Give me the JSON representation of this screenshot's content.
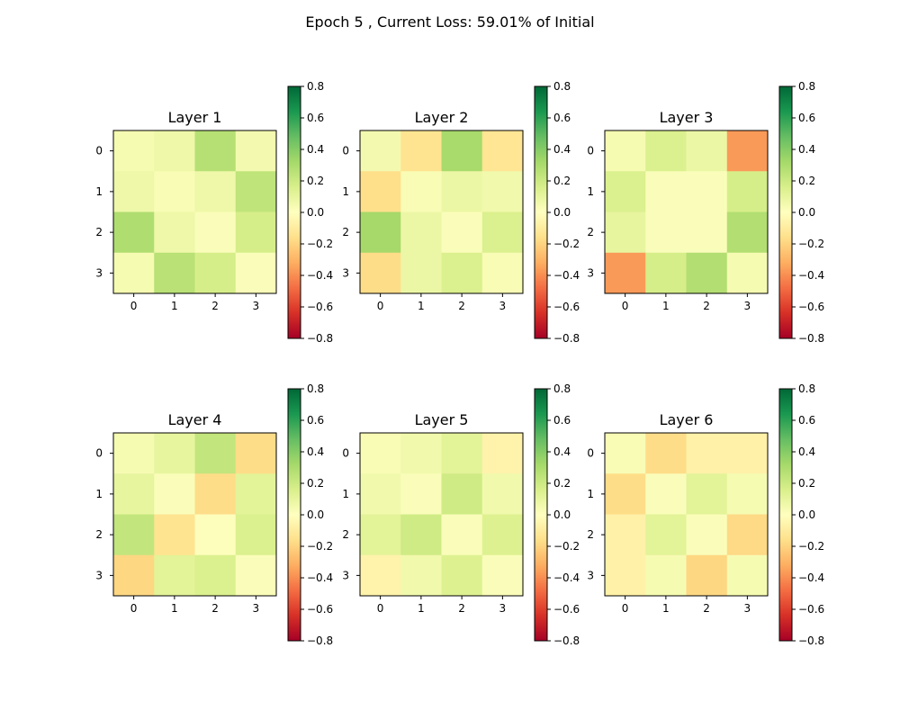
{
  "figure": {
    "title": "Epoch 5 , Current Loss: 59.01% of Initial"
  },
  "chart_data": [
    {
      "type": "heatmap",
      "title": "Layer 1",
      "x_ticks": [
        "0",
        "1",
        "2",
        "3"
      ],
      "y_ticks": [
        "0",
        "1",
        "2",
        "3"
      ],
      "values": [
        [
          0.04,
          0.07,
          0.27,
          0.05
        ],
        [
          0.07,
          0.03,
          0.07,
          0.24
        ],
        [
          0.29,
          0.07,
          0.02,
          0.17
        ],
        [
          0.04,
          0.26,
          0.17,
          0.02
        ]
      ],
      "colorbar": {
        "vmin": -0.8,
        "vmax": 0.8,
        "ticks": [
          "0.8",
          "0.6",
          "0.4",
          "0.2",
          "0.0",
          "−0.2",
          "−0.4",
          "−0.6",
          "−0.8"
        ]
      }
    },
    {
      "type": "heatmap",
      "title": "Layer 2",
      "x_ticks": [
        "0",
        "1",
        "2",
        "3"
      ],
      "y_ticks": [
        "0",
        "1",
        "2",
        "3"
      ],
      "values": [
        [
          0.05,
          -0.14,
          0.31,
          -0.13
        ],
        [
          -0.16,
          0.03,
          0.08,
          0.06
        ],
        [
          0.32,
          0.08,
          0.02,
          0.15
        ],
        [
          -0.17,
          0.08,
          0.15,
          0.03
        ]
      ],
      "colorbar": {
        "vmin": -0.8,
        "vmax": 0.8,
        "ticks": [
          "0.8",
          "0.6",
          "0.4",
          "0.2",
          "0.0",
          "−0.2",
          "−0.4",
          "−0.6",
          "−0.8"
        ]
      }
    },
    {
      "type": "heatmap",
      "title": "Layer 3",
      "x_ticks": [
        "0",
        "1",
        "2",
        "3"
      ],
      "y_ticks": [
        "0",
        "1",
        "2",
        "3"
      ],
      "values": [
        [
          0.04,
          0.15,
          0.08,
          -0.37
        ],
        [
          0.15,
          0.02,
          0.02,
          0.17
        ],
        [
          0.1,
          0.02,
          0.02,
          0.28
        ],
        [
          -0.37,
          0.17,
          0.28,
          0.04
        ]
      ],
      "colorbar": {
        "vmin": -0.8,
        "vmax": 0.8,
        "ticks": [
          "0.8",
          "0.6",
          "0.4",
          "0.2",
          "0.0",
          "−0.2",
          "−0.4",
          "−0.6",
          "−0.8"
        ]
      }
    },
    {
      "type": "heatmap",
      "title": "Layer 4",
      "x_ticks": [
        "0",
        "1",
        "2",
        "3"
      ],
      "y_ticks": [
        "0",
        "1",
        "2",
        "3"
      ],
      "values": [
        [
          0.04,
          0.1,
          0.23,
          -0.17
        ],
        [
          0.1,
          0.02,
          -0.17,
          0.12
        ],
        [
          0.23,
          -0.14,
          0.01,
          0.15
        ],
        [
          -0.19,
          0.12,
          0.15,
          0.02
        ]
      ],
      "colorbar": {
        "vmin": -0.8,
        "vmax": 0.8,
        "ticks": [
          "0.8",
          "0.6",
          "0.4",
          "0.2",
          "0.0",
          "−0.2",
          "−0.4",
          "−0.6",
          "−0.8"
        ]
      }
    },
    {
      "type": "heatmap",
      "title": "Layer 5",
      "x_ticks": [
        "0",
        "1",
        "2",
        "3"
      ],
      "y_ticks": [
        "0",
        "1",
        "2",
        "3"
      ],
      "values": [
        [
          0.03,
          0.06,
          0.12,
          -0.06
        ],
        [
          0.06,
          0.02,
          0.19,
          0.06
        ],
        [
          0.12,
          0.19,
          0.02,
          0.14
        ],
        [
          -0.06,
          0.06,
          0.14,
          0.02
        ]
      ],
      "colorbar": {
        "vmin": -0.8,
        "vmax": 0.8,
        "ticks": [
          "0.8",
          "0.6",
          "0.4",
          "0.2",
          "0.0",
          "−0.2",
          "−0.4",
          "−0.6",
          "−0.8"
        ]
      }
    },
    {
      "type": "heatmap",
      "title": "Layer 6",
      "x_ticks": [
        "0",
        "1",
        "2",
        "3"
      ],
      "y_ticks": [
        "0",
        "1",
        "2",
        "3"
      ],
      "values": [
        [
          0.03,
          -0.17,
          -0.07,
          -0.07
        ],
        [
          -0.17,
          0.02,
          0.12,
          0.04
        ],
        [
          -0.07,
          0.12,
          0.02,
          -0.18
        ],
        [
          -0.07,
          0.04,
          -0.19,
          0.04
        ]
      ],
      "colorbar": {
        "vmin": -0.8,
        "vmax": 0.8,
        "ticks": [
          "0.8",
          "0.6",
          "0.4",
          "0.2",
          "0.0",
          "−0.2",
          "−0.4",
          "−0.6",
          "−0.8"
        ]
      }
    }
  ]
}
